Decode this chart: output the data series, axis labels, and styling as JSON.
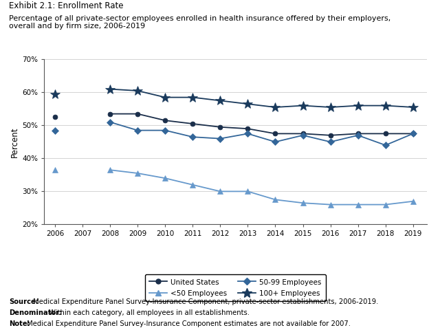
{
  "title_line1": "Exhibit 2.1: Enrollment Rate",
  "title_line2": "Percentage of all private-sector employees enrolled in health insurance offered by their employers,\noverall and by firm size, 2006-2019",
  "years": [
    2006,
    2007,
    2008,
    2009,
    2010,
    2011,
    2012,
    2013,
    2014,
    2015,
    2016,
    2017,
    2018,
    2019
  ],
  "united_states": [
    52.5,
    null,
    53.5,
    53.5,
    51.5,
    50.5,
    49.5,
    49.0,
    47.5,
    47.5,
    47.0,
    47.5,
    47.5,
    47.5
  ],
  "lt50": [
    36.5,
    null,
    36.5,
    35.5,
    34.0,
    32.0,
    30.0,
    30.0,
    27.5,
    26.5,
    26.0,
    26.0,
    26.0,
    27.0
  ],
  "s5099": [
    48.5,
    null,
    51.0,
    48.5,
    48.5,
    46.5,
    46.0,
    47.5,
    45.0,
    47.0,
    45.0,
    47.0,
    44.0,
    47.5
  ],
  "gt100": [
    59.5,
    null,
    61.0,
    60.5,
    58.5,
    58.5,
    57.5,
    56.5,
    55.5,
    56.0,
    55.5,
    56.0,
    56.0,
    55.5
  ],
  "ylim": [
    20,
    70
  ],
  "yticks": [
    20,
    30,
    40,
    50,
    60,
    70
  ],
  "color_us": "#1a2e4a",
  "color_lt50": "#6699cc",
  "color_5099": "#336699",
  "color_gt100": "#1a3a5c",
  "ylabel": "Percent",
  "source_bold": [
    "Source:",
    "Denominator:",
    "Note:"
  ],
  "source_normal": [
    " Medical Expenditure Panel Survey-Insurance Component, private-sector establishments, 2006-2019.",
    " Within each category, all employees in all establishments.",
    " Medical Expenditure Panel Survey-Insurance Component estimates are not available for 2007."
  ]
}
